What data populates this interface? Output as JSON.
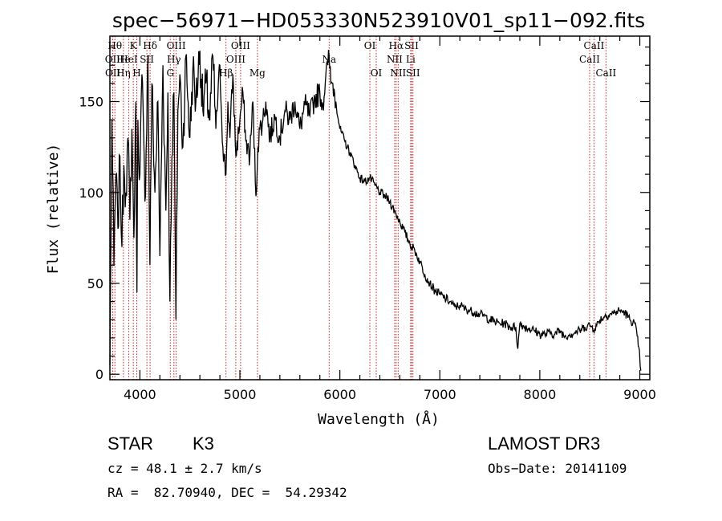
{
  "chart_data": {
    "type": "line",
    "title": "spec−56971−HD053330N523910V01_sp11−092.fits",
    "xlabel": "Wavelength (Å)",
    "ylabel": "Flux (relative)",
    "xlim": [
      3700,
      9100
    ],
    "ylim": [
      -3,
      186
    ],
    "xticks": [
      4000,
      5000,
      6000,
      7000,
      8000,
      9000
    ],
    "yticks": [
      0,
      50,
      100,
      150
    ],
    "series": [
      {
        "name": "spectrum",
        "x": [
          3700,
          3720,
          3740,
          3760,
          3780,
          3800,
          3820,
          3840,
          3860,
          3880,
          3900,
          3920,
          3940,
          3960,
          3970,
          3980,
          4000,
          4020,
          4050,
          4080,
          4100,
          4120,
          4150,
          4180,
          4200,
          4230,
          4260,
          4280,
          4300,
          4320,
          4340,
          4360,
          4380,
          4400,
          4430,
          4460,
          4500,
          4530,
          4560,
          4600,
          4630,
          4660,
          4700,
          4730,
          4760,
          4800,
          4830,
          4861,
          4880,
          4900,
          4930,
          4960,
          5000,
          5030,
          5060,
          5100,
          5130,
          5160,
          5180,
          5200,
          5230,
          5260,
          5300,
          5350,
          5400,
          5450,
          5500,
          5550,
          5600,
          5650,
          5700,
          5750,
          5800,
          5830,
          5860,
          5880,
          5893,
          5910,
          5930,
          5960,
          6000,
          6050,
          6100,
          6150,
          6200,
          6250,
          6300,
          6350,
          6400,
          6450,
          6500,
          6563,
          6600,
          6650,
          6700,
          6750,
          6800,
          6850,
          6900,
          6950,
          7000,
          7050,
          7100,
          7150,
          7200,
          7250,
          7300,
          7350,
          7400,
          7450,
          7500,
          7550,
          7600,
          7650,
          7700,
          7760,
          7780,
          7800,
          7850,
          7900,
          7950,
          8000,
          8050,
          8100,
          8150,
          8200,
          8250,
          8300,
          8350,
          8400,
          8450,
          8500,
          8550,
          8600,
          8650,
          8700,
          8750,
          8800,
          8850,
          8900,
          8950,
          8990,
          9010
        ],
        "y": [
          5,
          140,
          60,
          110,
          80,
          120,
          70,
          115,
          100,
          130,
          85,
          135,
          75,
          150,
          45,
          140,
          110,
          165,
          95,
          175,
          60,
          160,
          100,
          150,
          65,
          170,
          90,
          155,
          40,
          120,
          155,
          30,
          145,
          165,
          125,
          175,
          130,
          168,
          150,
          178,
          145,
          160,
          140,
          175,
          135,
          170,
          125,
          110,
          150,
          130,
          165,
          120,
          140,
          155,
          128,
          120,
          150,
          98,
          125,
          135,
          140,
          150,
          130,
          142,
          130,
          145,
          140,
          150,
          135,
          148,
          142,
          152,
          155,
          148,
          165,
          170,
          175,
          160,
          160,
          150,
          135,
          128,
          122,
          115,
          108,
          106,
          108,
          104,
          100,
          98,
          95,
          88,
          84,
          78,
          72,
          68,
          62,
          55,
          50,
          46,
          44,
          42,
          40,
          37,
          38,
          36,
          35,
          34,
          33,
          32,
          30,
          29,
          28,
          28,
          26,
          26,
          14,
          28,
          26,
          25,
          24,
          22,
          22,
          23,
          22,
          24,
          21,
          22,
          23,
          24,
          26,
          27,
          25,
          30,
          32,
          33,
          34,
          35,
          34,
          30,
          28,
          15,
          2
        ]
      }
    ],
    "reference_lines": [
      {
        "label": "Hθ",
        "x": 3750,
        "row": 0
      },
      {
        "label": "OII",
        "x": 3727,
        "row": 1
      },
      {
        "label": "OII",
        "x": 3729,
        "row": 2
      },
      {
        "label": "He",
        "x": 3835,
        "row": 1
      },
      {
        "label": "Hη",
        "x": 3835,
        "row": 2
      },
      {
        "label": "K",
        "x": 3934,
        "row": 0
      },
      {
        "label": "HeI",
        "x": 3888,
        "row": 1
      },
      {
        "label": "H",
        "x": 3969,
        "row": 2
      },
      {
        "label": "Hδ",
        "x": 4102,
        "row": 0
      },
      {
        "label": "SII",
        "x": 4070,
        "row": 1
      },
      {
        "label": "OIII",
        "x": 4363,
        "row": 0
      },
      {
        "label": "Hγ",
        "x": 4340,
        "row": 1
      },
      {
        "label": "G",
        "x": 4304,
        "row": 2
      },
      {
        "label": "Hβ",
        "x": 4861,
        "row": 2
      },
      {
        "label": "OIII",
        "x": 4959,
        "row": 1
      },
      {
        "label": "OIII",
        "x": 5007,
        "row": 0
      },
      {
        "label": "Mg",
        "x": 5175,
        "row": 2
      },
      {
        "label": "Na",
        "x": 5893,
        "row": 1
      },
      {
        "label": "OI",
        "x": 6300,
        "row": 0
      },
      {
        "label": "OI",
        "x": 6364,
        "row": 2
      },
      {
        "label": "Hα",
        "x": 6563,
        "row": 0
      },
      {
        "label": "NII",
        "x": 6548,
        "row": 1
      },
      {
        "label": "NII",
        "x": 6583,
        "row": 2
      },
      {
        "label": "SII",
        "x": 6717,
        "row": 0
      },
      {
        "label": "Li",
        "x": 6708,
        "row": 1
      },
      {
        "label": "SII",
        "x": 6731,
        "row": 2
      },
      {
        "label": "CaII",
        "x": 8542,
        "row": 0
      },
      {
        "label": "CaII",
        "x": 8498,
        "row": 1
      },
      {
        "label": "CaII",
        "x": 8662,
        "row": 2
      }
    ],
    "reference_line_color": "#cc2222"
  },
  "info": {
    "object_type": "STAR",
    "subclass": "K3",
    "survey": "LAMOST DR3",
    "cz": "cz = 48.1 ± 2.7 km/s",
    "obs_date": "Obs−Date: 20141109",
    "coords": "RA =  82.70940, DEC =  54.29342"
  }
}
